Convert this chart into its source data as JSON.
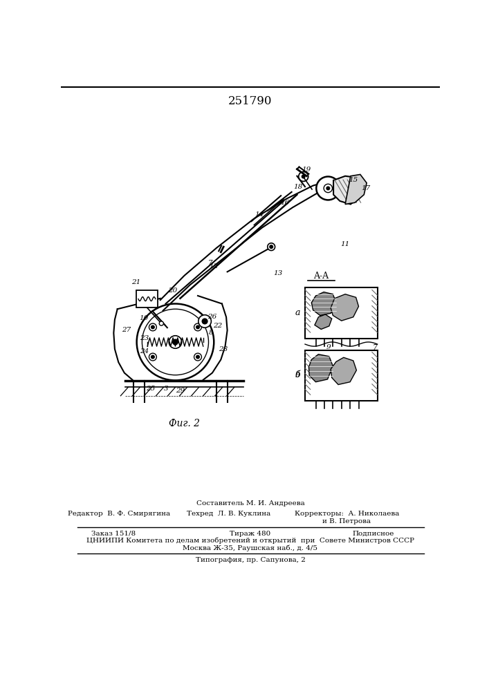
{
  "title": "251790",
  "fig_label": "Фиг. 2",
  "section_label": "A-A",
  "section_a": "a",
  "section_b": "б",
  "footer_line1": "Составитель М. И. Андреева",
  "footer_line2_col1": "Редактор  В. Ф. Смирягина",
  "footer_line2_col2": "Техред  Л. В. Куклина",
  "footer_line2_col3": "Корректоры:  А. Николаева",
  "footer_line3_col3": "и В. Петрова",
  "footer_line4_col1": "Заказ 151/8",
  "footer_line4_col2": "Тираж 480",
  "footer_line4_col3": "Подписное",
  "footer_line5": "ЦНИИПИ Комитета по делам изобретений и открытий  при  Совете Министров СССР",
  "footer_line6": "Москва Ж-35, Раушская наб., д. 4/5",
  "footer_line7": "Типография, пр. Сапунова, 2",
  "bg_color": "#ffffff",
  "text_color": "#000000",
  "line_color": "#000000"
}
